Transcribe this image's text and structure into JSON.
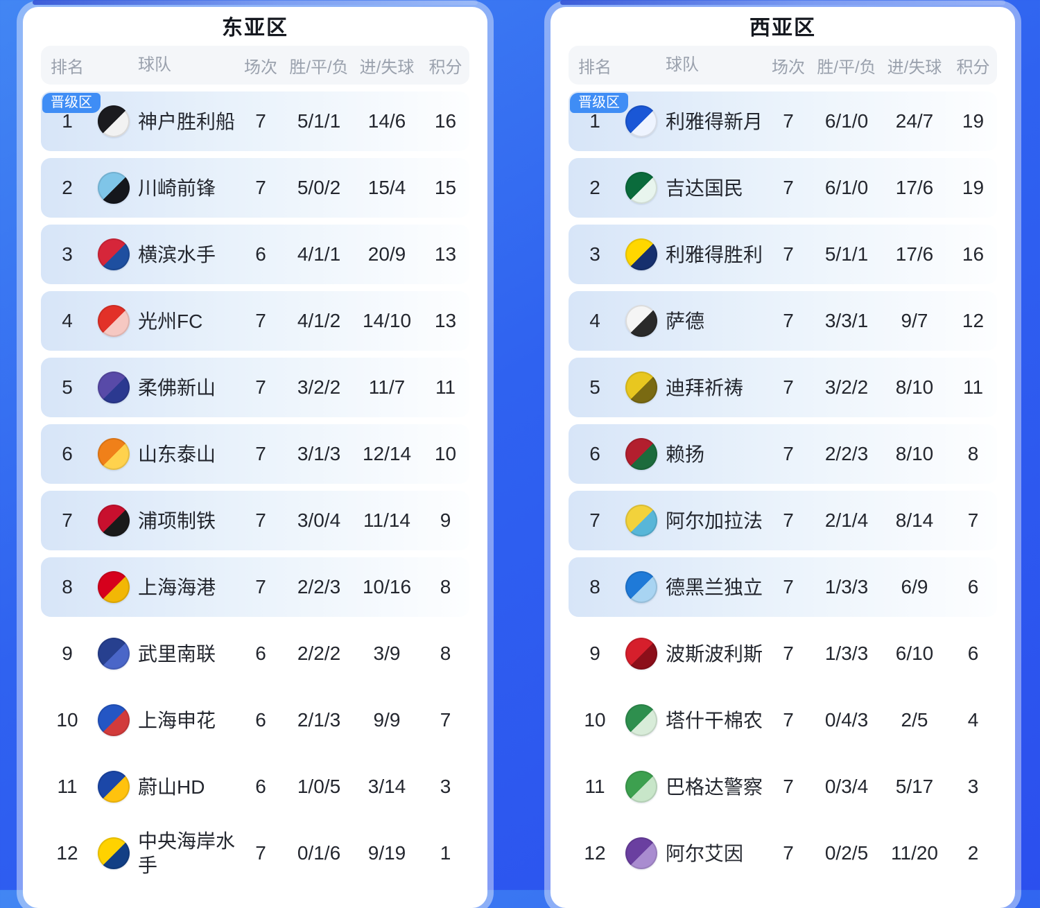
{
  "theme": {
    "page_bg_top": "#4286f3",
    "page_bg_bottom": "#2b4fee",
    "card_bg": "#ffffff",
    "card_halo": "rgba(255,255,255,0.42)",
    "header_row_bg": "#f4f6f9",
    "header_text": "#9aa1ad",
    "row_highlight_left": "#d7e5f8",
    "row_highlight_right": "#fdfeff",
    "badge_bg": "#3f8df5",
    "badge_text": "#ffffff",
    "body_text": "#23262e",
    "title_text": "#15181f"
  },
  "promotion_badge": "晋级区",
  "columns": {
    "rank": "排名",
    "team": "球队",
    "matches": "场次",
    "wdl": "胜/平/负",
    "goals": "进/失球",
    "points": "积分"
  },
  "tables": [
    {
      "title": "东亚区",
      "rows": [
        {
          "rank": 1,
          "team": "神户胜利船",
          "matches": 7,
          "wdl": "5/1/1",
          "goals": "14/6",
          "points": 16,
          "promoted": true,
          "crest": [
            "#1b1b1f",
            "#f2f2f2"
          ]
        },
        {
          "rank": 2,
          "team": "川崎前锋",
          "matches": 7,
          "wdl": "5/0/2",
          "goals": "15/4",
          "points": 15,
          "promoted": true,
          "crest": [
            "#7fc5e8",
            "#15171c"
          ]
        },
        {
          "rank": 3,
          "team": "横滨水手",
          "matches": 6,
          "wdl": "4/1/1",
          "goals": "20/9",
          "points": 13,
          "promoted": true,
          "crest": [
            "#d6263a",
            "#1e4fa0"
          ]
        },
        {
          "rank": 4,
          "team": "光州FC",
          "matches": 7,
          "wdl": "4/1/2",
          "goals": "14/10",
          "points": 13,
          "promoted": true,
          "crest": [
            "#e23128",
            "#f6c8c2"
          ]
        },
        {
          "rank": 5,
          "team": "柔佛新山",
          "matches": 7,
          "wdl": "3/2/2",
          "goals": "11/7",
          "points": 11,
          "promoted": true,
          "crest": [
            "#584aa8",
            "#2b3990"
          ]
        },
        {
          "rank": 6,
          "team": "山东泰山",
          "matches": 7,
          "wdl": "3/1/3",
          "goals": "12/14",
          "points": 10,
          "promoted": true,
          "crest": [
            "#f08019",
            "#ffd24d"
          ]
        },
        {
          "rank": 7,
          "team": "浦项制铁",
          "matches": 7,
          "wdl": "3/0/4",
          "goals": "11/14",
          "points": 9,
          "promoted": true,
          "crest": [
            "#c8102e",
            "#1a1a1a"
          ]
        },
        {
          "rank": 8,
          "team": "上海海港",
          "matches": 7,
          "wdl": "2/2/3",
          "goals": "10/16",
          "points": 8,
          "promoted": true,
          "crest": [
            "#d6001c",
            "#f2b705"
          ]
        },
        {
          "rank": 9,
          "team": "武里南联",
          "matches": 6,
          "wdl": "2/2/2",
          "goals": "3/9",
          "points": 8,
          "promoted": false,
          "crest": [
            "#27408f",
            "#4a66c8"
          ]
        },
        {
          "rank": 10,
          "team": "上海申花",
          "matches": 6,
          "wdl": "2/1/3",
          "goals": "9/9",
          "points": 7,
          "promoted": false,
          "crest": [
            "#2456c4",
            "#d23b3b"
          ]
        },
        {
          "rank": 11,
          "team": "蔚山HD",
          "matches": 6,
          "wdl": "1/0/5",
          "goals": "3/14",
          "points": 3,
          "promoted": false,
          "crest": [
            "#1b47a8",
            "#ffc20e"
          ]
        },
        {
          "rank": 12,
          "team": "中央海岸水手",
          "matches": 7,
          "wdl": "0/1/6",
          "goals": "9/19",
          "points": 1,
          "promoted": false,
          "crest": [
            "#ffd200",
            "#123f85"
          ]
        }
      ]
    },
    {
      "title": "西亚区",
      "rows": [
        {
          "rank": 1,
          "team": "利雅得新月",
          "matches": 7,
          "wdl": "6/1/0",
          "goals": "24/7",
          "points": 19,
          "promoted": true,
          "crest": [
            "#1a57d6",
            "#eef4ff"
          ]
        },
        {
          "rank": 2,
          "team": "吉达国民",
          "matches": 7,
          "wdl": "6/1/0",
          "goals": "17/6",
          "points": 19,
          "promoted": true,
          "crest": [
            "#0a6b3c",
            "#e8f5ee"
          ]
        },
        {
          "rank": 3,
          "team": "利雅得胜利",
          "matches": 7,
          "wdl": "5/1/1",
          "goals": "17/6",
          "points": 16,
          "promoted": true,
          "crest": [
            "#ffd700",
            "#16306e"
          ]
        },
        {
          "rank": 4,
          "team": "萨德",
          "matches": 7,
          "wdl": "3/3/1",
          "goals": "9/7",
          "points": 12,
          "promoted": true,
          "crest": [
            "#f5f5f5",
            "#2a2a2a"
          ]
        },
        {
          "rank": 5,
          "team": "迪拜祈祷",
          "matches": 7,
          "wdl": "3/2/2",
          "goals": "8/10",
          "points": 11,
          "promoted": true,
          "crest": [
            "#e8c71f",
            "#7a6a12"
          ]
        },
        {
          "rank": 6,
          "team": "赖扬",
          "matches": 7,
          "wdl": "2/2/3",
          "goals": "8/10",
          "points": 8,
          "promoted": true,
          "crest": [
            "#b31f2e",
            "#1c6b3c"
          ]
        },
        {
          "rank": 7,
          "team": "阿尔加拉法",
          "matches": 7,
          "wdl": "2/1/4",
          "goals": "8/14",
          "points": 7,
          "promoted": true,
          "crest": [
            "#f2d23b",
            "#58b6d8"
          ]
        },
        {
          "rank": 8,
          "team": "德黑兰独立",
          "matches": 7,
          "wdl": "1/3/3",
          "goals": "6/9",
          "points": 6,
          "promoted": true,
          "crest": [
            "#1f7ad8",
            "#a8d4f2"
          ]
        },
        {
          "rank": 9,
          "team": "波斯波利斯",
          "matches": 7,
          "wdl": "1/3/3",
          "goals": "6/10",
          "points": 6,
          "promoted": false,
          "crest": [
            "#d61f2c",
            "#8c0f1a"
          ]
        },
        {
          "rank": 10,
          "team": "塔什干棉农",
          "matches": 7,
          "wdl": "0/4/3",
          "goals": "2/5",
          "points": 4,
          "promoted": false,
          "crest": [
            "#2e8f4e",
            "#d8ecd9"
          ]
        },
        {
          "rank": 11,
          "team": "巴格达警察",
          "matches": 7,
          "wdl": "0/3/4",
          "goals": "5/17",
          "points": 3,
          "promoted": false,
          "crest": [
            "#3da04f",
            "#c8e6c9"
          ]
        },
        {
          "rank": 12,
          "team": "阿尔艾因",
          "matches": 7,
          "wdl": "0/2/5",
          "goals": "11/20",
          "points": 2,
          "promoted": false,
          "crest": [
            "#6a3fa0",
            "#a98cd0"
          ]
        }
      ]
    }
  ]
}
